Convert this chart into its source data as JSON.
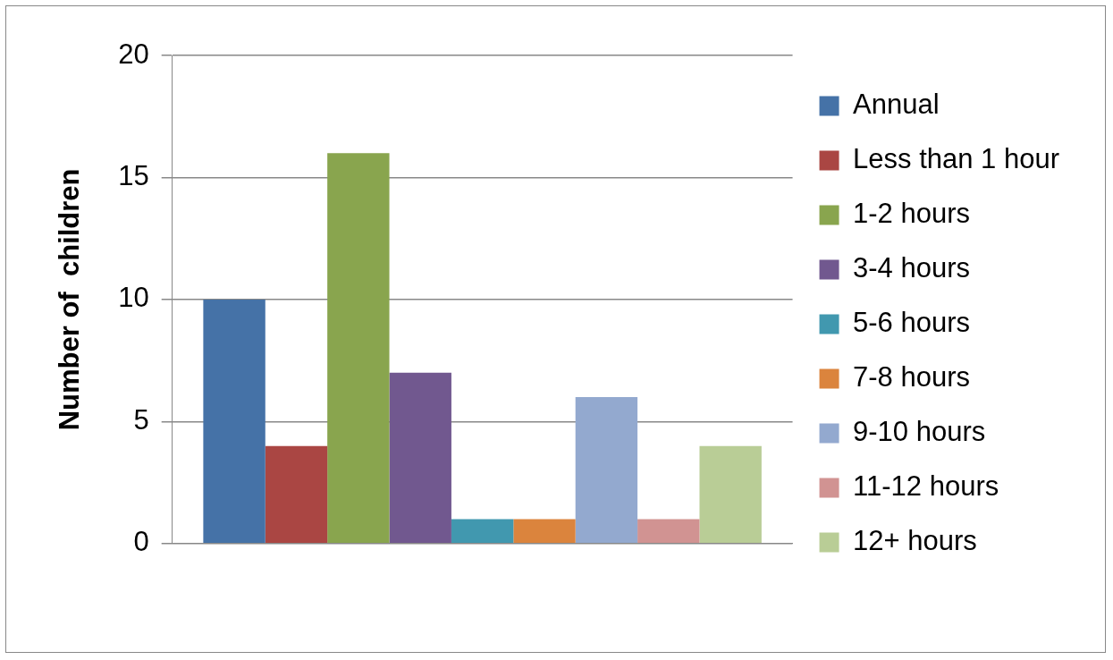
{
  "chart_data": {
    "type": "bar",
    "ylabel": "Number of  children",
    "categories": [
      null
    ],
    "series": [
      {
        "name": "Annual",
        "color": "#4572a7",
        "values": [
          10
        ]
      },
      {
        "name": "Less than 1 hour",
        "color": "#aa4643",
        "values": [
          4
        ]
      },
      {
        "name": "1-2 hours",
        "color": "#89a54e",
        "values": [
          16
        ]
      },
      {
        "name": "3-4 hours",
        "color": "#71588f",
        "values": [
          7
        ]
      },
      {
        "name": "5-6 hours",
        "color": "#4198af",
        "values": [
          1
        ]
      },
      {
        "name": "7-8 hours",
        "color": "#db843d",
        "values": [
          1
        ]
      },
      {
        "name": "9-10 hours",
        "color": "#93a9cf",
        "values": [
          6
        ]
      },
      {
        "name": "11-12 hours",
        "color": "#d19392",
        "values": [
          1
        ]
      },
      {
        "name": "12+ hours",
        "color": "#b9cd96",
        "values": [
          4
        ]
      }
    ],
    "ylim": [
      0,
      20
    ],
    "yticks": [
      0,
      5,
      10,
      15,
      20
    ],
    "grid": "y",
    "legend": "right"
  }
}
